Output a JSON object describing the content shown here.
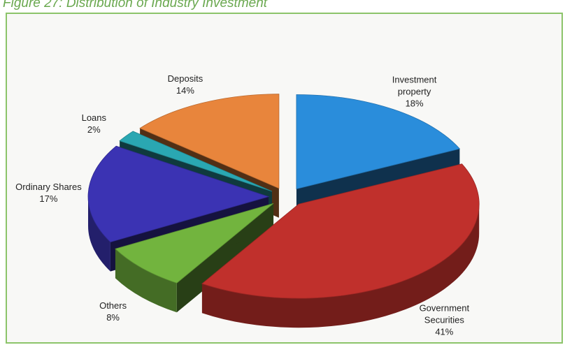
{
  "chart_data": {
    "type": "pie",
    "title": "Figure 27: Distribution of Industry Investment",
    "categories": [
      "Investment property",
      "Government Securities",
      "Others",
      "Ordinary Shares",
      "Loans",
      "Deposits"
    ],
    "values": [
      18,
      41,
      8,
      17,
      2,
      14
    ],
    "value_labels": [
      "18%",
      "41%",
      "8%",
      "17%",
      "2%",
      "14%"
    ],
    "colors": [
      "#2a8ddb",
      "#c0302c",
      "#72b43e",
      "#3b33b3",
      "#2aa7b2",
      "#e8853c"
    ]
  }
}
